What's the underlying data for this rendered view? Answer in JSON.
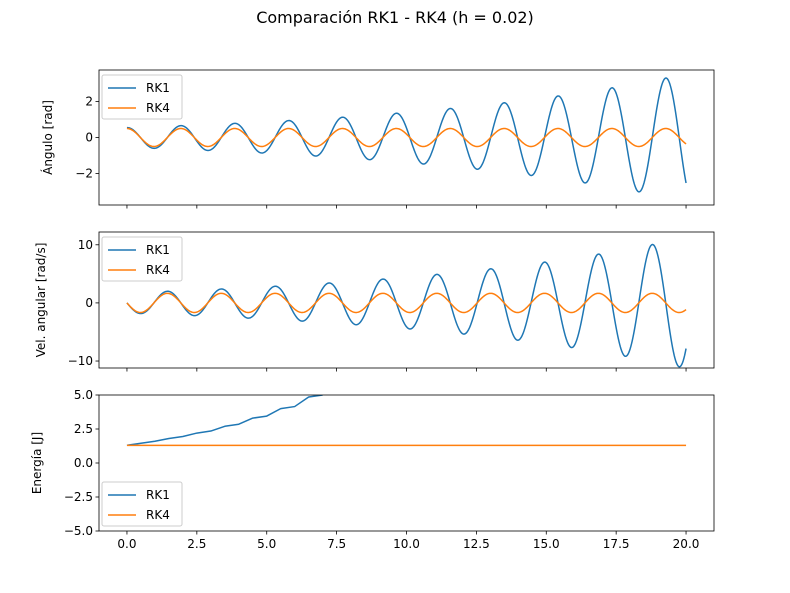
{
  "title": "Comparación RK1 - RK4 (h = 0.02)",
  "colors": {
    "rk1": "#1f77b4",
    "rk4": "#ff7f0e"
  },
  "chart_data": [
    {
      "type": "line",
      "ylabel": "Ángulo [rad]",
      "xlim": [
        -1.0,
        21.0
      ],
      "ylim": [
        -3.75,
        3.75
      ],
      "yticks": [
        -2,
        0,
        2
      ],
      "ytick_labels": [
        "−2",
        "0",
        "2"
      ],
      "show_xticklabels": false,
      "legend": "top-left",
      "series": [
        {
          "name": "RK1",
          "color": "#1f77b4",
          "model": "growing_cos",
          "amp0": 0.55,
          "growth": 0.093,
          "omega": 3.26,
          "phase": 0.0,
          "shift": 0.0
        },
        {
          "name": "RK4",
          "color": "#ff7f0e",
          "model": "cos",
          "amp0": 0.5,
          "growth": 0.0,
          "omega": 3.26,
          "phase": 0.0,
          "shift": 0.0
        }
      ]
    },
    {
      "type": "line",
      "ylabel": "Vel. angular [rad/s]",
      "xlim": [
        -1.0,
        21.0
      ],
      "ylim": [
        -11.2,
        12.2
      ],
      "yticks": [
        -10,
        0,
        10
      ],
      "ytick_labels": [
        "−10",
        "0",
        "10"
      ],
      "show_xticklabels": false,
      "legend": "top-left",
      "series": [
        {
          "name": "RK1",
          "color": "#1f77b4",
          "model": "growing_sin",
          "amp0": 1.75,
          "growth": 0.093,
          "omega": 3.26,
          "phase": 0.0,
          "shift": 0.0
        },
        {
          "name": "RK4",
          "color": "#ff7f0e",
          "model": "sin",
          "amp0": 1.65,
          "growth": 0.0,
          "omega": 3.26,
          "phase": 0.0,
          "shift": 0.0
        }
      ]
    },
    {
      "type": "line",
      "ylabel": "Energía [J]",
      "xlim": [
        -1.0,
        21.0
      ],
      "ylim": [
        -5.0,
        5.0
      ],
      "yticks": [
        -5.0,
        -2.5,
        0.0,
        2.5,
        5.0
      ],
      "ytick_labels": [
        "−5.0",
        "−2.5",
        "0.0",
        "2.5",
        "5.0"
      ],
      "xticks": [
        0.0,
        2.5,
        5.0,
        7.5,
        10.0,
        12.5,
        15.0,
        17.5,
        20.0
      ],
      "xtick_labels": [
        "0.0",
        "2.5",
        "5.0",
        "7.5",
        "10.0",
        "12.5",
        "15.0",
        "17.5",
        "20.0"
      ],
      "show_xticklabels": true,
      "legend": "lower-left",
      "series": [
        {
          "name": "RK1",
          "color": "#1f77b4",
          "model": "energy_growth",
          "x": [
            0.0,
            0.5,
            1.0,
            1.5,
            2.0,
            2.5,
            3.0,
            3.5,
            4.0,
            4.5,
            5.0,
            5.5,
            6.0,
            6.5,
            7.0
          ],
          "y": [
            1.3,
            1.45,
            1.6,
            1.8,
            1.95,
            2.2,
            2.35,
            2.7,
            2.85,
            3.3,
            3.45,
            4.0,
            4.15,
            4.85,
            5.0
          ]
        },
        {
          "name": "RK4",
          "color": "#ff7f0e",
          "model": "constant",
          "x": [
            0.0,
            20.0
          ],
          "y": [
            1.3,
            1.3
          ]
        }
      ]
    }
  ]
}
